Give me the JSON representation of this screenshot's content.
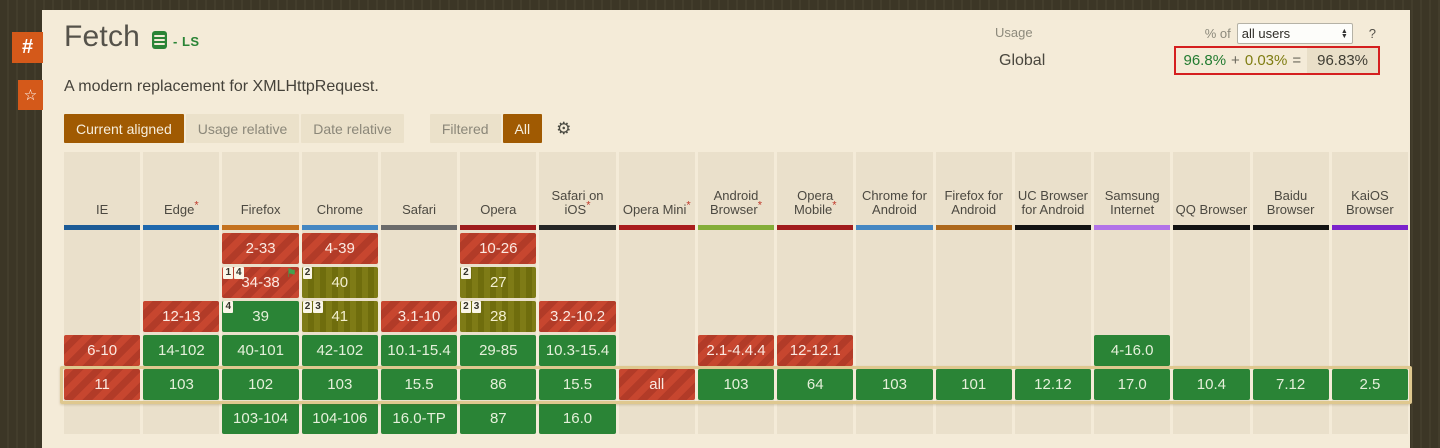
{
  "sidebar": {
    "permalink_glyph": "#",
    "favorite_glyph": "☆"
  },
  "header": {
    "title": "Fetch",
    "spec_status": "- LS",
    "description": "A modern replacement for XMLHttpRequest.",
    "usage_label": "Usage",
    "percent_of_label": "% of",
    "users_selected_option": "all users",
    "help_label": "?",
    "global_label": "Global",
    "usage_full": "96.8%",
    "usage_plus": "+",
    "usage_partial": "0.03%",
    "usage_equals": "=",
    "usage_total": "96.83%"
  },
  "toolbar": {
    "view_buttons": [
      {
        "label": "Current aligned",
        "active": true
      },
      {
        "label": "Usage relative",
        "active": false
      },
      {
        "label": "Date relative",
        "active": false
      }
    ],
    "filter_buttons": [
      {
        "label": "Filtered",
        "active": false
      },
      {
        "label": "All",
        "active": true
      }
    ],
    "settings_icon": "⚙"
  },
  "colors": {
    "accent_orange": "#d4591a",
    "active_button": "#a05a02",
    "support_full": "#2a8436",
    "support_none": "#c7462f",
    "support_partial": "#7e7b16",
    "usage_box_border": "#d51f1f",
    "current_row_outline": "#dfc88f"
  },
  "table": {
    "row_keys": [
      "past-3",
      "past-2",
      "past-1",
      "previous",
      "current",
      "future"
    ],
    "columns": [
      {
        "name": "IE",
        "asterisk": false,
        "strip": "#1c5b96",
        "cells": [
          {
            "support": "u"
          },
          {
            "support": "u"
          },
          {
            "support": "u"
          },
          {
            "text": "6-10",
            "support": "n"
          },
          {
            "text": "11",
            "support": "n"
          },
          {
            "support": "u"
          }
        ]
      },
      {
        "name": "Edge",
        "asterisk": true,
        "strip": "#1f68ad",
        "cells": [
          {
            "support": "u"
          },
          {
            "support": "u"
          },
          {
            "text": "12-13",
            "support": "n"
          },
          {
            "text": "14-102",
            "support": "y"
          },
          {
            "text": "103",
            "support": "y"
          },
          {
            "support": "u"
          }
        ]
      },
      {
        "name": "Firefox",
        "asterisk": false,
        "strip": "#c4721f",
        "cells": [
          {
            "text": "2-33",
            "support": "n"
          },
          {
            "text": "34-38",
            "support": "n",
            "notes": [
              "1",
              "4"
            ],
            "flag": true
          },
          {
            "text": "39",
            "support": "y",
            "notes": [
              "4"
            ]
          },
          {
            "text": "40-101",
            "support": "y"
          },
          {
            "text": "102",
            "support": "y"
          },
          {
            "text": "103-104",
            "support": "y"
          }
        ]
      },
      {
        "name": "Chrome",
        "asterisk": false,
        "strip": "#4587c2",
        "cells": [
          {
            "text": "4-39",
            "support": "n"
          },
          {
            "text": "40",
            "support": "a",
            "notes": [
              "2"
            ]
          },
          {
            "text": "41",
            "support": "a",
            "notes": [
              "2",
              "3"
            ]
          },
          {
            "text": "42-102",
            "support": "y"
          },
          {
            "text": "103",
            "support": "y"
          },
          {
            "text": "104-106",
            "support": "y"
          }
        ]
      },
      {
        "name": "Safari",
        "asterisk": false,
        "strip": "#6b6b6b",
        "cells": [
          {
            "support": "u"
          },
          {
            "support": "u"
          },
          {
            "text": "3.1-10",
            "support": "n"
          },
          {
            "text": "10.1-15.4",
            "support": "y"
          },
          {
            "text": "15.5",
            "support": "y"
          },
          {
            "text": "16.0-TP",
            "support": "y"
          }
        ]
      },
      {
        "name": "Opera",
        "asterisk": false,
        "strip": "#9e1c1c",
        "cells": [
          {
            "text": "10-26",
            "support": "n"
          },
          {
            "text": "27",
            "support": "a",
            "notes": [
              "2"
            ]
          },
          {
            "text": "28",
            "support": "a",
            "notes": [
              "2",
              "3"
            ]
          },
          {
            "text": "29-85",
            "support": "y"
          },
          {
            "text": "86",
            "support": "y"
          },
          {
            "text": "87",
            "support": "y"
          }
        ]
      },
      {
        "name": "Safari on iOS",
        "asterisk": true,
        "strip": "#262626",
        "cells": [
          {
            "support": "u"
          },
          {
            "support": "u"
          },
          {
            "text": "3.2-10.2",
            "support": "n"
          },
          {
            "text": "10.3-15.4",
            "support": "y"
          },
          {
            "text": "15.5",
            "support": "y"
          },
          {
            "text": "16.0",
            "support": "y"
          }
        ]
      },
      {
        "name": "Opera Mini",
        "asterisk": true,
        "strip": "#a91c1c",
        "cells": [
          {
            "support": "u"
          },
          {
            "support": "u"
          },
          {
            "support": "u"
          },
          {
            "support": "u"
          },
          {
            "text": "all",
            "support": "n"
          },
          {
            "support": "u"
          }
        ]
      },
      {
        "name": "Android Browser",
        "asterisk": true,
        "strip": "#84ad38",
        "cells": [
          {
            "support": "u"
          },
          {
            "support": "u"
          },
          {
            "support": "u"
          },
          {
            "text": "2.1-4.4.4",
            "support": "n"
          },
          {
            "text": "103",
            "support": "y"
          },
          {
            "support": "u"
          }
        ]
      },
      {
        "name": "Opera Mobile",
        "asterisk": true,
        "strip": "#a11c1c",
        "cells": [
          {
            "support": "u"
          },
          {
            "support": "u"
          },
          {
            "support": "u"
          },
          {
            "text": "12-12.1",
            "support": "n"
          },
          {
            "text": "64",
            "support": "y"
          },
          {
            "support": "u"
          }
        ]
      },
      {
        "name": "Chrome for Android",
        "asterisk": false,
        "strip": "#4587c2",
        "cells": [
          {
            "support": "u"
          },
          {
            "support": "u"
          },
          {
            "support": "u"
          },
          {
            "support": "u"
          },
          {
            "text": "103",
            "support": "y"
          },
          {
            "support": "u"
          }
        ]
      },
      {
        "name": "Firefox for Android",
        "asterisk": false,
        "strip": "#ad681c",
        "cells": [
          {
            "support": "u"
          },
          {
            "support": "u"
          },
          {
            "support": "u"
          },
          {
            "support": "u"
          },
          {
            "text": "101",
            "support": "y"
          },
          {
            "support": "u"
          }
        ]
      },
      {
        "name": "UC Browser for Android",
        "asterisk": false,
        "strip": "#131313",
        "cells": [
          {
            "support": "u"
          },
          {
            "support": "u"
          },
          {
            "support": "u"
          },
          {
            "support": "u"
          },
          {
            "text": "12.12",
            "support": "y"
          },
          {
            "support": "u"
          }
        ]
      },
      {
        "name": "Samsung Internet",
        "asterisk": false,
        "strip": "#b273e8",
        "cells": [
          {
            "support": "u"
          },
          {
            "support": "u"
          },
          {
            "support": "u"
          },
          {
            "text": "4-16.0",
            "support": "y"
          },
          {
            "text": "17.0",
            "support": "y"
          },
          {
            "support": "u"
          }
        ]
      },
      {
        "name": "QQ Browser",
        "asterisk": false,
        "strip": "#131313",
        "cells": [
          {
            "support": "u"
          },
          {
            "support": "u"
          },
          {
            "support": "u"
          },
          {
            "support": "u"
          },
          {
            "text": "10.4",
            "support": "y"
          },
          {
            "support": "u"
          }
        ]
      },
      {
        "name": "Baidu Browser",
        "asterisk": false,
        "strip": "#131313",
        "cells": [
          {
            "support": "u"
          },
          {
            "support": "u"
          },
          {
            "support": "u"
          },
          {
            "support": "u"
          },
          {
            "text": "7.12",
            "support": "y"
          },
          {
            "support": "u"
          }
        ]
      },
      {
        "name": "KaiOS Browser",
        "asterisk": false,
        "strip": "#7c23cc",
        "cells": [
          {
            "support": "u"
          },
          {
            "support": "u"
          },
          {
            "support": "u"
          },
          {
            "support": "u"
          },
          {
            "text": "2.5",
            "support": "y"
          },
          {
            "support": "u"
          }
        ]
      }
    ]
  }
}
